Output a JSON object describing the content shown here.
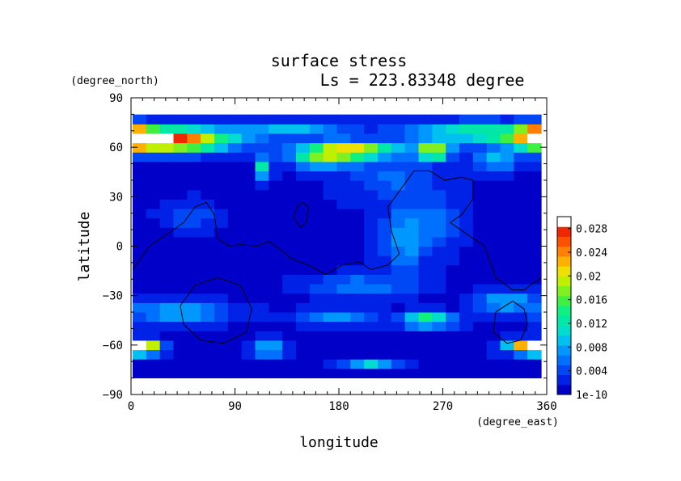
{
  "chart_data": {
    "type": "heatmap",
    "title": "surface stress",
    "subtitle": "Ls = 223.83348 degree",
    "xlabel": "longitude",
    "ylabel": "latitude",
    "x_unit": "(degree_east)",
    "y_unit": "(degree_north)",
    "xlim": [
      0,
      360
    ],
    "ylim": [
      -90,
      90
    ],
    "x_ticks": [
      "0",
      "90",
      "180",
      "270",
      "360"
    ],
    "y_ticks": [
      "90",
      "60",
      "30",
      "0",
      "−30",
      "−60",
      "−90"
    ],
    "x_tick_values": [
      0,
      90,
      180,
      270,
      360
    ],
    "y_tick_values": [
      90,
      60,
      30,
      0,
      -30,
      -60,
      -90
    ],
    "colorbar": {
      "min": 1e-10,
      "max": 0.03,
      "labels": [
        "0.028",
        "0.024",
        "0.02",
        "0.016",
        "0.012",
        "0.008",
        "0.004",
        "1e-10"
      ],
      "label_values": [
        0.028,
        0.024,
        0.02,
        0.016,
        0.012,
        0.008,
        0.004,
        0
      ],
      "colors": [
        "#0000c8",
        "#0022e6",
        "#0048f5",
        "#0070ff",
        "#0098ff",
        "#00c0f0",
        "#00dcd0",
        "#00e8a8",
        "#10f080",
        "#40f040",
        "#80f020",
        "#c0f000",
        "#f0e000",
        "#ffb000",
        "#ff8000",
        "#ff5000",
        "#f02800",
        "#ffffff"
      ]
    },
    "grid": {
      "lon_step": 12,
      "lat_step": 6
    },
    "blobs": [
      {
        "lon": 30,
        "lat": 68,
        "rlon": 55,
        "rlat": 7,
        "amp": 0.03
      },
      {
        "lon": 5,
        "lat": 68,
        "rlon": 12,
        "rlat": 7,
        "amp": 0.012
      },
      {
        "lon": 140,
        "lat": 75,
        "rlon": 45,
        "rlat": 5,
        "amp": 0.008
      },
      {
        "lon": 300,
        "lat": 73,
        "rlon": 60,
        "rlat": 6,
        "amp": 0.012
      },
      {
        "lon": 355,
        "lat": 73,
        "rlon": 15,
        "rlat": 6,
        "amp": 0.012
      },
      {
        "lon": 170,
        "lat": 58,
        "rlon": 30,
        "rlat": 7,
        "amp": 0.016
      },
      {
        "lon": 200,
        "lat": 62,
        "rlon": 35,
        "rlat": 5,
        "amp": 0.016
      },
      {
        "lon": 265,
        "lat": 61,
        "rlon": 14,
        "rlat": 5,
        "amp": 0.022
      },
      {
        "lon": 320,
        "lat": 55,
        "rlon": 20,
        "rlat": 6,
        "amp": 0.008
      },
      {
        "lon": 115,
        "lat": 50,
        "rlon": 6,
        "rlat": 7,
        "amp": 0.012
      },
      {
        "lon": 230,
        "lat": 45,
        "rlon": 40,
        "rlat": 15,
        "amp": 0.004
      },
      {
        "lon": 240,
        "lat": 5,
        "rlon": 18,
        "rlat": 22,
        "amp": 0.007
      },
      {
        "lon": 270,
        "lat": 15,
        "rlon": 18,
        "rlat": 15,
        "amp": 0.005
      },
      {
        "lon": 50,
        "lat": 20,
        "rlon": 20,
        "rlat": 8,
        "amp": 0.004
      },
      {
        "lon": 200,
        "lat": -25,
        "rlon": 40,
        "rlat": 6,
        "amp": 0.006
      },
      {
        "lon": 40,
        "lat": -42,
        "rlon": 45,
        "rlat": 6,
        "amp": 0.008
      },
      {
        "lon": 180,
        "lat": -45,
        "rlon": 30,
        "rlat": 5,
        "amp": 0.006
      },
      {
        "lon": 260,
        "lat": -47,
        "rlon": 22,
        "rlat": 4,
        "amp": 0.017
      },
      {
        "lon": 330,
        "lat": -35,
        "rlon": 25,
        "rlat": 6,
        "amp": 0.008
      },
      {
        "lon": 8,
        "lat": -64,
        "rlon": 15,
        "rlat": 4,
        "amp": 0.026
      },
      {
        "lon": 350,
        "lat": -64,
        "rlon": 20,
        "rlat": 4,
        "amp": 0.026
      },
      {
        "lon": 120,
        "lat": -65,
        "rlon": 15,
        "rlat": 5,
        "amp": 0.009
      },
      {
        "lon": 210,
        "lat": -75,
        "rlon": 20,
        "rlat": 3,
        "amp": 0.01
      }
    ],
    "contours": [
      [
        [
          0,
          -15
        ],
        [
          15,
          0
        ],
        [
          35,
          10
        ],
        [
          45,
          15
        ],
        [
          55,
          25
        ],
        [
          65,
          28
        ],
        [
          72,
          20
        ],
        [
          75,
          5
        ],
        [
          85,
          0
        ],
        [
          95,
          1
        ],
        [
          110,
          0
        ],
        [
          120,
          3
        ],
        [
          130,
          -2
        ],
        [
          140,
          -8
        ],
        [
          155,
          -12
        ],
        [
          170,
          -18
        ],
        [
          185,
          -12
        ],
        [
          200,
          -10
        ],
        [
          210,
          -15
        ],
        [
          225,
          -12
        ],
        [
          235,
          -5
        ],
        [
          228,
          10
        ],
        [
          225,
          25
        ],
        [
          235,
          35
        ],
        [
          248,
          48
        ],
        [
          262,
          48
        ],
        [
          275,
          42
        ],
        [
          290,
          44
        ],
        [
          300,
          42
        ],
        [
          300,
          30
        ],
        [
          290,
          20
        ],
        [
          280,
          15
        ],
        [
          300,
          5
        ],
        [
          310,
          0
        ],
        [
          315,
          -10
        ],
        [
          320,
          -20
        ],
        [
          335,
          -28
        ],
        [
          345,
          -28
        ],
        [
          360,
          -20
        ]
      ],
      [
        [
          75,
          -20
        ],
        [
          95,
          -25
        ],
        [
          105,
          -40
        ],
        [
          100,
          -55
        ],
        [
          80,
          -62
        ],
        [
          60,
          -60
        ],
        [
          45,
          -50
        ],
        [
          42,
          -38
        ],
        [
          55,
          -25
        ],
        [
          75,
          -20
        ]
      ],
      [
        [
          335,
          -35
        ],
        [
          345,
          -40
        ],
        [
          348,
          -50
        ],
        [
          342,
          -60
        ],
        [
          330,
          -62
        ],
        [
          318,
          -55
        ],
        [
          320,
          -42
        ],
        [
          335,
          -35
        ]
      ],
      [
        [
          145,
          25
        ],
        [
          150,
          28
        ],
        [
          155,
          25
        ],
        [
          153,
          15
        ],
        [
          148,
          12
        ],
        [
          142,
          18
        ],
        [
          145,
          25
        ]
      ]
    ]
  }
}
